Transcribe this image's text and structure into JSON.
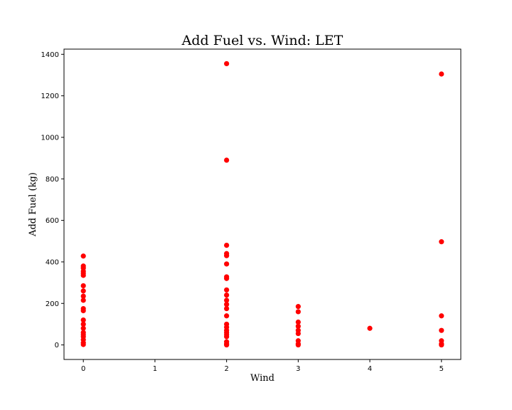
{
  "chart_data": {
    "type": "scatter",
    "title": "Add Fuel vs. Wind: LET",
    "xlabel": "Wind",
    "ylabel": "Add Fuel (kg)",
    "xlim": [
      -0.27,
      5.27
    ],
    "ylim": [
      -70,
      1425
    ],
    "xticks": [
      0,
      1,
      2,
      3,
      4,
      5
    ],
    "yticks": [
      0,
      200,
      400,
      600,
      800,
      1000,
      1200,
      1400
    ],
    "grid": false,
    "color": "#ff0000",
    "points": [
      [
        0,
        428
      ],
      [
        0,
        380
      ],
      [
        0,
        370
      ],
      [
        0,
        355
      ],
      [
        0,
        345
      ],
      [
        0,
        335
      ],
      [
        0,
        285
      ],
      [
        0,
        260
      ],
      [
        0,
        235
      ],
      [
        0,
        215
      ],
      [
        0,
        175
      ],
      [
        0,
        165
      ],
      [
        0,
        120
      ],
      [
        0,
        100
      ],
      [
        0,
        80
      ],
      [
        0,
        60
      ],
      [
        0,
        50
      ],
      [
        0,
        40
      ],
      [
        0,
        25
      ],
      [
        0,
        10
      ],
      [
        0,
        2
      ],
      [
        2,
        1355
      ],
      [
        2,
        890
      ],
      [
        2,
        480
      ],
      [
        2,
        440
      ],
      [
        2,
        430
      ],
      [
        2,
        390
      ],
      [
        2,
        328
      ],
      [
        2,
        320
      ],
      [
        2,
        265
      ],
      [
        2,
        240
      ],
      [
        2,
        215
      ],
      [
        2,
        195
      ],
      [
        2,
        175
      ],
      [
        2,
        140
      ],
      [
        2,
        100
      ],
      [
        2,
        85
      ],
      [
        2,
        70
      ],
      [
        2,
        60
      ],
      [
        2,
        50
      ],
      [
        2,
        40
      ],
      [
        2,
        15
      ],
      [
        2,
        5
      ],
      [
        2,
        0
      ],
      [
        3,
        185
      ],
      [
        3,
        160
      ],
      [
        3,
        110
      ],
      [
        3,
        90
      ],
      [
        3,
        70
      ],
      [
        3,
        55
      ],
      [
        3,
        20
      ],
      [
        3,
        5
      ],
      [
        3,
        0
      ],
      [
        4,
        80
      ],
      [
        5,
        1305
      ],
      [
        5,
        497
      ],
      [
        5,
        140
      ],
      [
        5,
        70
      ],
      [
        5,
        20
      ],
      [
        5,
        5
      ],
      [
        5,
        0
      ]
    ]
  }
}
